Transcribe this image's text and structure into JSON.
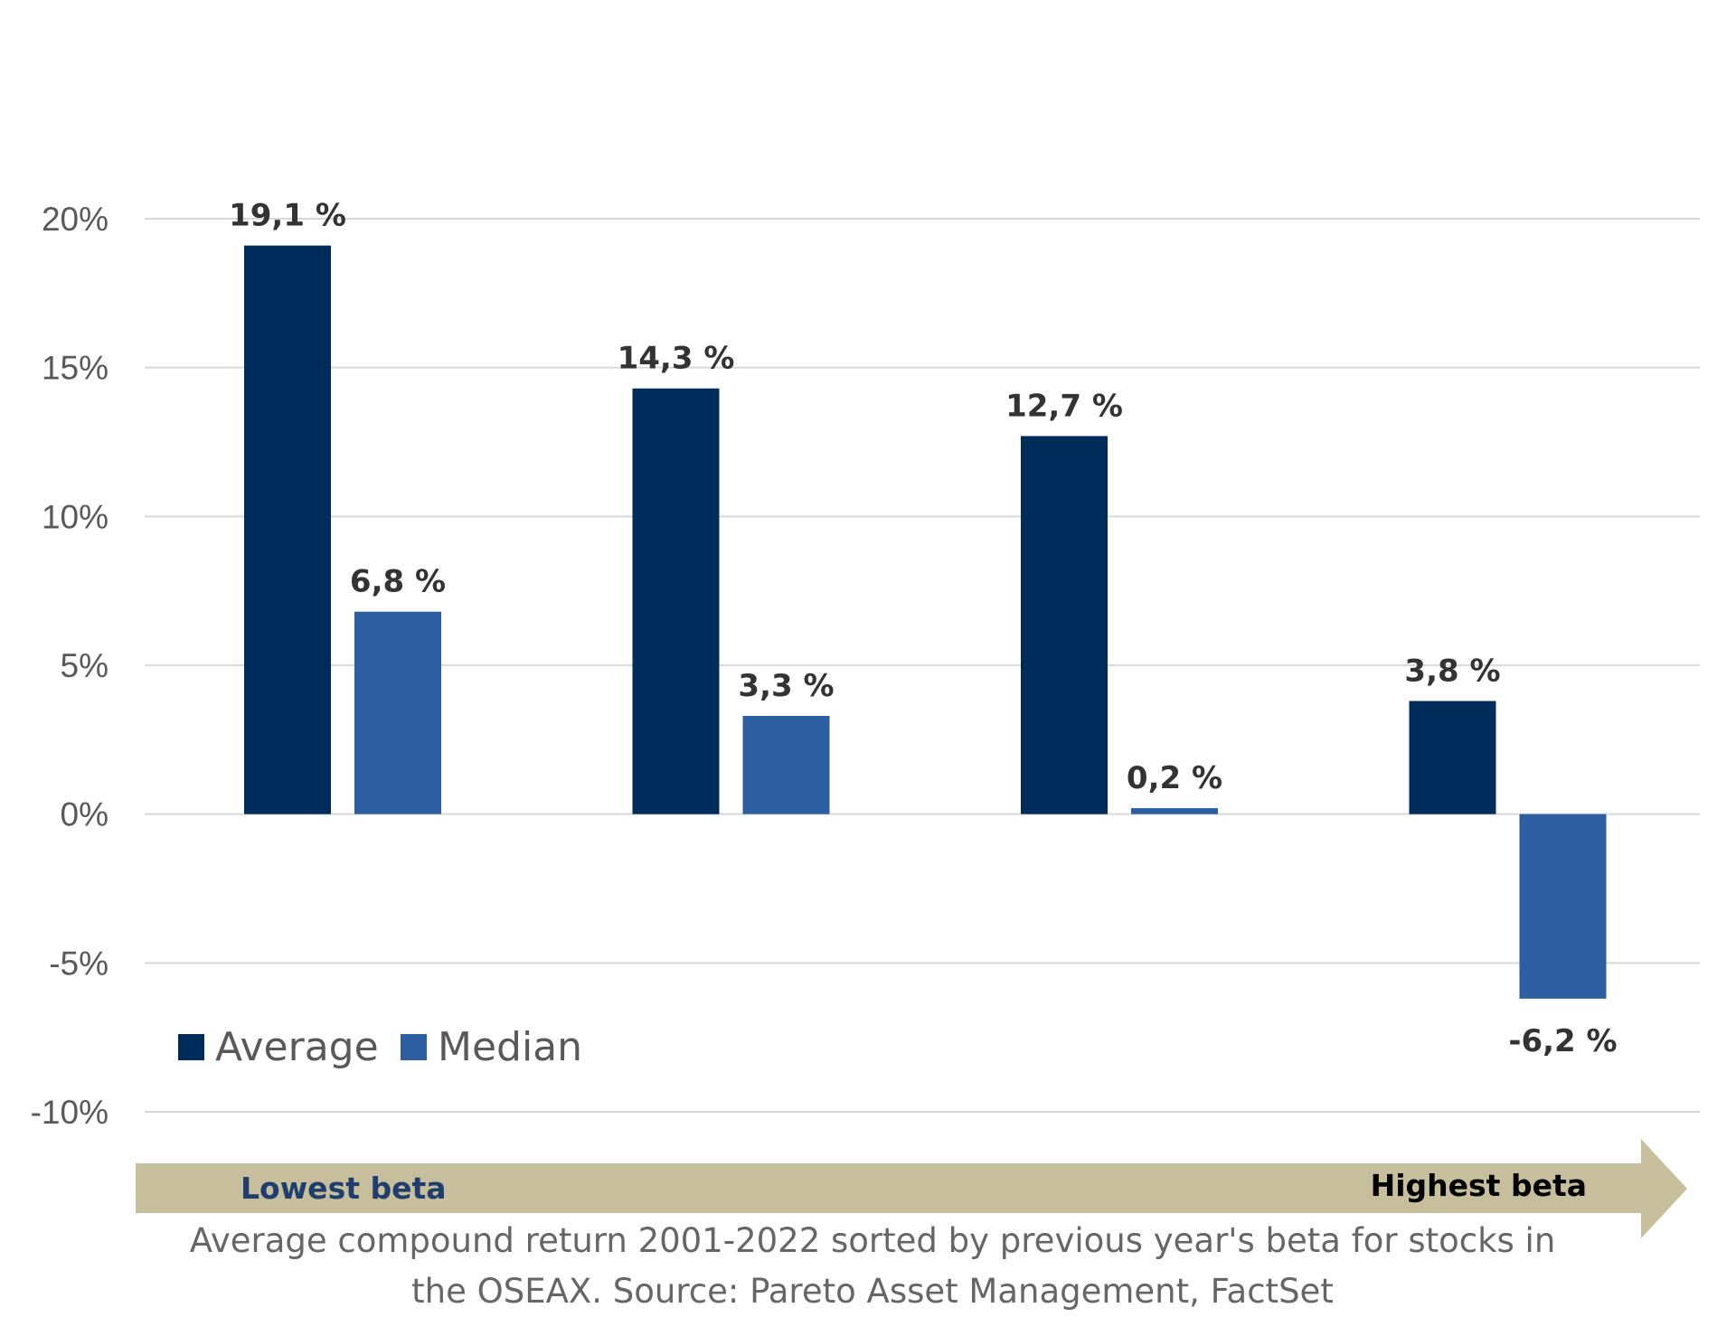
{
  "colors": {
    "average": "#002c5c",
    "median": "#2e5ea2",
    "grid": "#d9d9d9",
    "arrow": "#c7bf9b",
    "lowest_label": "#1f3d6d",
    "highest_label": "#000000"
  },
  "chart_data": {
    "type": "bar",
    "categories": [
      "",
      "",
      "",
      ""
    ],
    "series": [
      {
        "name": "Average",
        "values": [
          19.1,
          14.3,
          12.7,
          3.8
        ],
        "labels": [
          "19,1 %",
          "14,3 %",
          "12,7 %",
          "3,8 %"
        ]
      },
      {
        "name": "Median",
        "values": [
          6.8,
          3.3,
          0.2,
          -6.2
        ],
        "labels": [
          "6,8 %",
          "3,3 %",
          "0,2 %",
          "-6,2 %"
        ]
      }
    ],
    "yticks": [
      {
        "value": 20,
        "label": "20%"
      },
      {
        "value": 15,
        "label": "15%"
      },
      {
        "value": 10,
        "label": "10%"
      },
      {
        "value": 5,
        "label": "5%"
      },
      {
        "value": 0,
        "label": "0%"
      },
      {
        "value": -5,
        "label": "-5%"
      },
      {
        "value": -10,
        "label": "-10%"
      }
    ],
    "ylim": [
      -10,
      20
    ],
    "grid": true,
    "legend_position": "bottom-left"
  },
  "arrow": {
    "left_label": "Lowest beta",
    "right_label": "Highest beta"
  },
  "caption": {
    "line1": "Average compound return 2001-2022 sorted by previous year's beta for stocks in",
    "line2": "the OSEAX. Source: Pareto Asset Management, FactSet"
  }
}
